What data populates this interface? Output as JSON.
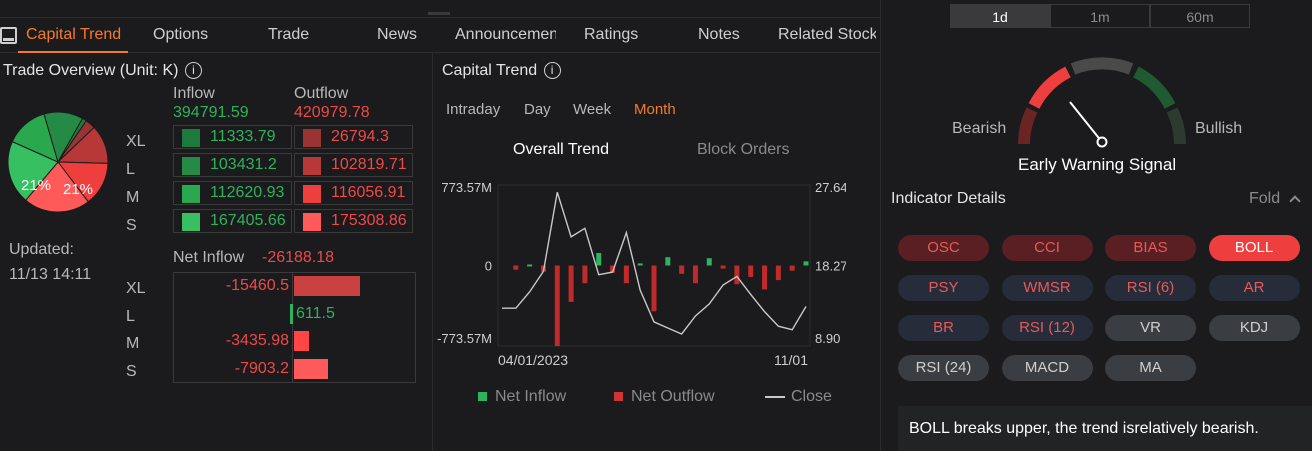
{
  "tabs": [
    {
      "label": "Capital Trend",
      "active": true
    },
    {
      "label": "Options"
    },
    {
      "label": "Trade"
    },
    {
      "label": "News"
    },
    {
      "label": "Announcement"
    },
    {
      "label": "Ratings"
    },
    {
      "label": "Notes"
    },
    {
      "label": "Related Stock"
    }
  ],
  "overview": {
    "title": "Trade Overview (Unit: K)",
    "inflow_label": "Inflow",
    "outflow_label": "Outflow",
    "inflow_total": "394791.59",
    "outflow_total": "420979.78",
    "pie_labels": [
      "21%",
      "21%"
    ],
    "rows": [
      {
        "size": "XL",
        "inflow": "11333.79",
        "outflow": "26794.3"
      },
      {
        "size": "L",
        "inflow": "103431.2",
        "outflow": "102819.71"
      },
      {
        "size": "M",
        "inflow": "112620.93",
        "outflow": "116056.91"
      },
      {
        "size": "S",
        "inflow": "167405.66",
        "outflow": "175308.86"
      }
    ],
    "updated_label": "Updated:",
    "updated_time": "11/13 14:11",
    "net_label": "Net Inflow",
    "net_total": "-26188.18",
    "net_rows": [
      {
        "size": "XL",
        "value": "-15460.5",
        "fraction": 1.0,
        "color": "#c94040"
      },
      {
        "size": "L",
        "value": "611.5",
        "fraction": 0.04,
        "color": "#2db35d"
      },
      {
        "size": "M",
        "value": "-3435.98",
        "fraction": 0.22,
        "color": "#ff4545"
      },
      {
        "size": "S",
        "value": "-7903.2",
        "fraction": 0.51,
        "color": "#ff5a5a"
      }
    ],
    "colors": {
      "xl_in": "#1e7a3c",
      "l_in": "#258a46",
      "m_in": "#2aa84e",
      "s_in": "#37c062",
      "xl_out": "#9a3434",
      "l_out": "#b83838",
      "m_out": "#ee3e3e",
      "s_out": "#ff5a5a"
    }
  },
  "capital": {
    "title": "Capital Trend",
    "periods": [
      {
        "label": "Intraday"
      },
      {
        "label": "Day"
      },
      {
        "label": "Week"
      },
      {
        "label": "Month",
        "active": true
      }
    ],
    "subtabs": [
      {
        "label": "Overall Trend",
        "active": true
      },
      {
        "label": "Block Orders"
      }
    ],
    "legend": {
      "inflow": "Net Inflow",
      "outflow": "Net Outflow",
      "close": "Close"
    }
  },
  "chart_data": {
    "type": "bar",
    "y_left_ticks": [
      "773.57M",
      "0",
      "-773.57M"
    ],
    "y_right_ticks": [
      "27.64",
      "18.27",
      "8.90"
    ],
    "ylim": [
      -773.57,
      773.57
    ],
    "y2lim": [
      8.9,
      27.64
    ],
    "x_ticks": [
      "04/01/2023",
      "11/01"
    ],
    "series": [
      {
        "name": "Net Inflow",
        "color": "#2db35d"
      },
      {
        "name": "Net Outflow",
        "color": "#c02a2a"
      },
      {
        "name": "Close",
        "color": "#c8c8c8"
      }
    ],
    "flows": [
      0,
      -40,
      10,
      -60,
      -773.57,
      -350,
      -170,
      120,
      -70,
      -170,
      20,
      -440,
      80,
      -80,
      -170,
      70,
      -30,
      -180,
      -110,
      -230,
      -140,
      -50,
      40
    ],
    "close": [
      13.3,
      13.3,
      15.2,
      17.6,
      26.8,
      21.6,
      22.6,
      17.2,
      17.5,
      22.1,
      15.4,
      11.7,
      11.0,
      10.3,
      12.4,
      13.8,
      16.0,
      17.0,
      14.9,
      12.9,
      11.2,
      10.8,
      13.5
    ]
  },
  "sidebar": {
    "periods": [
      {
        "label": "1d",
        "active": true
      },
      {
        "label": "1m"
      },
      {
        "label": "60m"
      }
    ],
    "bearish": "Bearish",
    "bullish": "Bullish",
    "signal": "Early Warning Signal",
    "indicator_title": "Indicator Details",
    "fold": "Fold",
    "indicators": [
      {
        "label": "OSC",
        "style": "dred"
      },
      {
        "label": "CCI",
        "style": "dred"
      },
      {
        "label": "BIAS",
        "style": "dred"
      },
      {
        "label": "BOLL",
        "style": "bright"
      },
      {
        "label": "PSY",
        "style": "dblue"
      },
      {
        "label": "WMSR",
        "style": "dblue"
      },
      {
        "label": "RSI (6)",
        "style": "dblue"
      },
      {
        "label": "AR",
        "style": "dblue"
      },
      {
        "label": "BR",
        "style": "dblue"
      },
      {
        "label": "RSI (12)",
        "style": "dblue"
      },
      {
        "label": "VR",
        "style": "dgray"
      },
      {
        "label": "KDJ",
        "style": "dgray"
      },
      {
        "label": "RSI (24)",
        "style": "dgray"
      },
      {
        "label": "MACD",
        "style": "dgray"
      },
      {
        "label": "MA",
        "style": "dgray"
      }
    ],
    "message": "BOLL breaks upper, the trend isrelatively bearish."
  }
}
